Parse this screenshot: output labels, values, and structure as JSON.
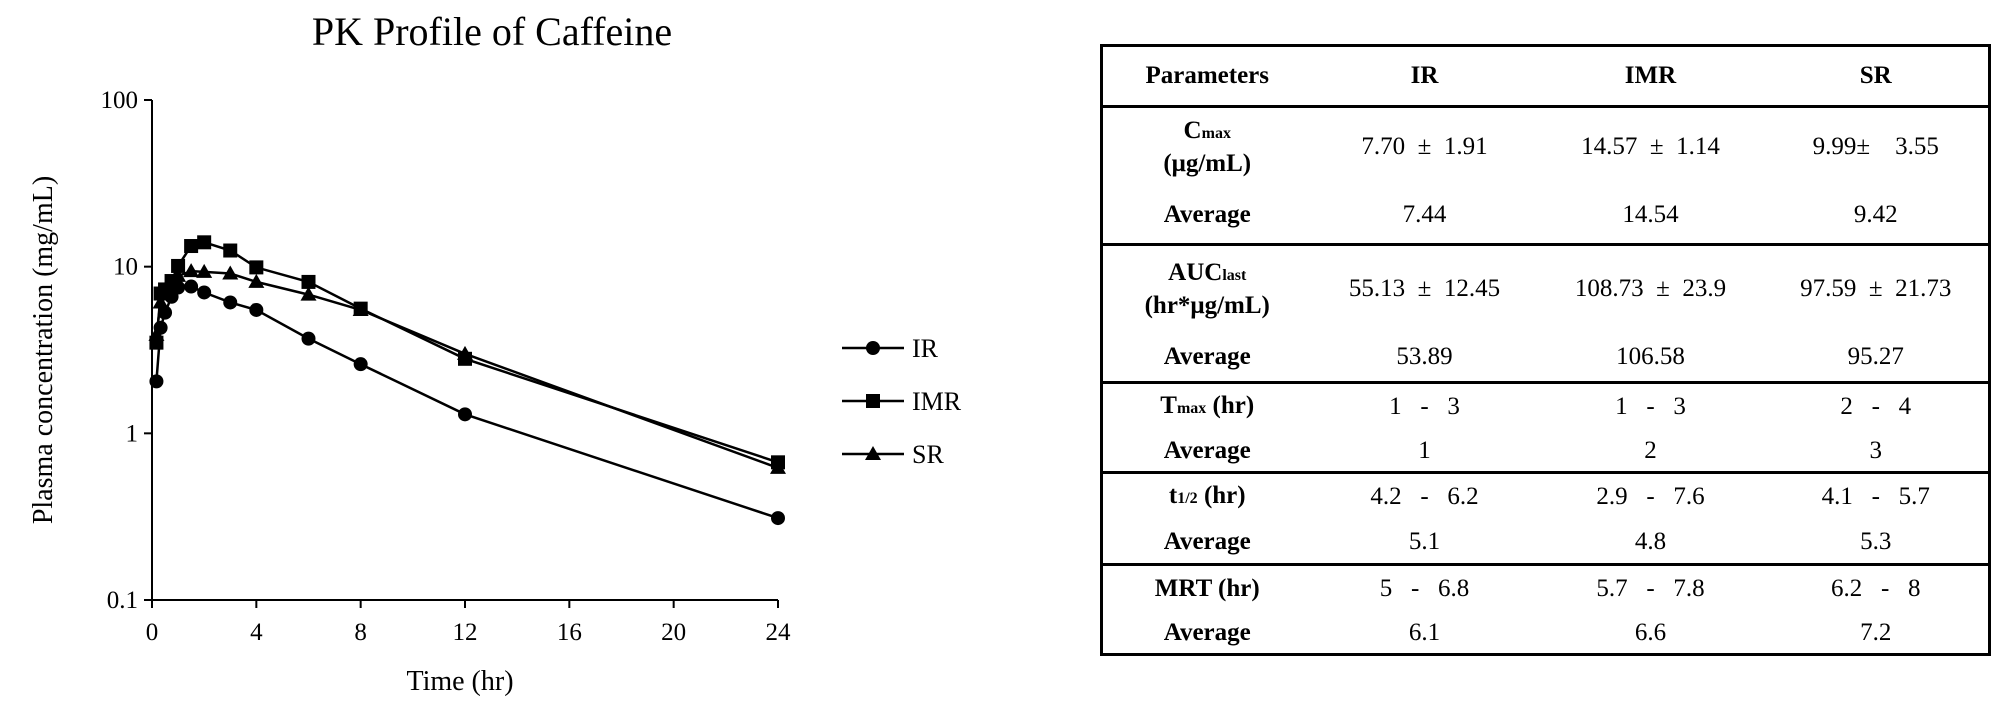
{
  "chart_data": {
    "type": "line",
    "title": "PK Profile of Caffeine",
    "xlabel": "Time (hr)",
    "ylabel": "Plasma concentration (mg/mL)",
    "xlim": [
      0,
      24
    ],
    "ylim": [
      0.1,
      100
    ],
    "y_scale": "log",
    "x_ticks": [
      "0",
      "4",
      "8",
      "12",
      "16",
      "20",
      "24"
    ],
    "y_ticks": [
      "0.1",
      "1",
      "10",
      "100"
    ],
    "grid": false,
    "legend_position": "right",
    "series": [
      {
        "name": "IR",
        "marker": "circle",
        "x": [
          0.17,
          0.33,
          0.5,
          0.75,
          1,
          1.5,
          2,
          3,
          4,
          6,
          8,
          12,
          24
        ],
        "y": [
          2.05,
          4.3,
          5.3,
          6.6,
          7.5,
          7.6,
          7.0,
          6.1,
          5.5,
          3.7,
          2.6,
          1.3,
          0.31
        ]
      },
      {
        "name": "IMR",
        "marker": "square",
        "x": [
          0.17,
          0.33,
          0.5,
          0.75,
          1,
          1.5,
          2,
          3,
          4,
          6,
          8,
          12,
          24
        ],
        "y": [
          3.5,
          6.9,
          7.3,
          8.2,
          10.1,
          13.3,
          14.0,
          12.5,
          9.9,
          8.1,
          5.6,
          2.8,
          0.67
        ]
      },
      {
        "name": "SR",
        "marker": "triangle",
        "x": [
          0.17,
          0.33,
          0.5,
          0.75,
          1,
          1.5,
          2,
          3,
          4,
          6,
          8,
          12,
          24
        ],
        "y": [
          3.9,
          6.1,
          7.3,
          8.0,
          8.8,
          9.4,
          9.3,
          9.1,
          8.1,
          6.8,
          5.5,
          3.0,
          0.62
        ]
      }
    ]
  },
  "table": {
    "headers": [
      "Parameters",
      "IR",
      "IMR",
      "SR"
    ],
    "groups": [
      {
        "param_main": "C",
        "param_sub": "max",
        "param_line2": "(μg/mL)",
        "values": [
          "7.70  ±  1.91",
          "14.57  ±  1.14",
          "9.99±    3.55"
        ],
        "avg_label": "Average",
        "averages": [
          "7.44",
          "14.54",
          "9.42"
        ]
      },
      {
        "param_main": "AUC",
        "param_sub": "last",
        "param_line2": "(hr*μg/mL)",
        "values": [
          "55.13  ±  12.45",
          "108.73  ±  23.9",
          "97.59  ±  21.73"
        ],
        "avg_label": "Average",
        "averages": [
          "53.89",
          "106.58",
          "95.27"
        ]
      },
      {
        "param_main": "T",
        "param_sub": "max",
        "param_after": " (hr)",
        "values": [
          "1   -   3",
          "1   -   3",
          "2   -   4"
        ],
        "avg_label": "Average",
        "averages": [
          "1",
          "2",
          "3"
        ]
      },
      {
        "param_main": "t",
        "param_sub": "1/2",
        "param_after": " (hr)",
        "values": [
          "4.2   -   6.2",
          "2.9   -   7.6",
          "4.1   -   5.7"
        ],
        "avg_label": "Average",
        "averages": [
          "5.1",
          "4.8",
          "5.3"
        ]
      },
      {
        "param_main": "MRT (hr)",
        "values": [
          "5   -   6.8",
          "5.7   -   7.8",
          "6.2   -   8"
        ],
        "avg_label": "Average",
        "averages": [
          "6.1",
          "6.6",
          "7.2"
        ]
      }
    ]
  }
}
